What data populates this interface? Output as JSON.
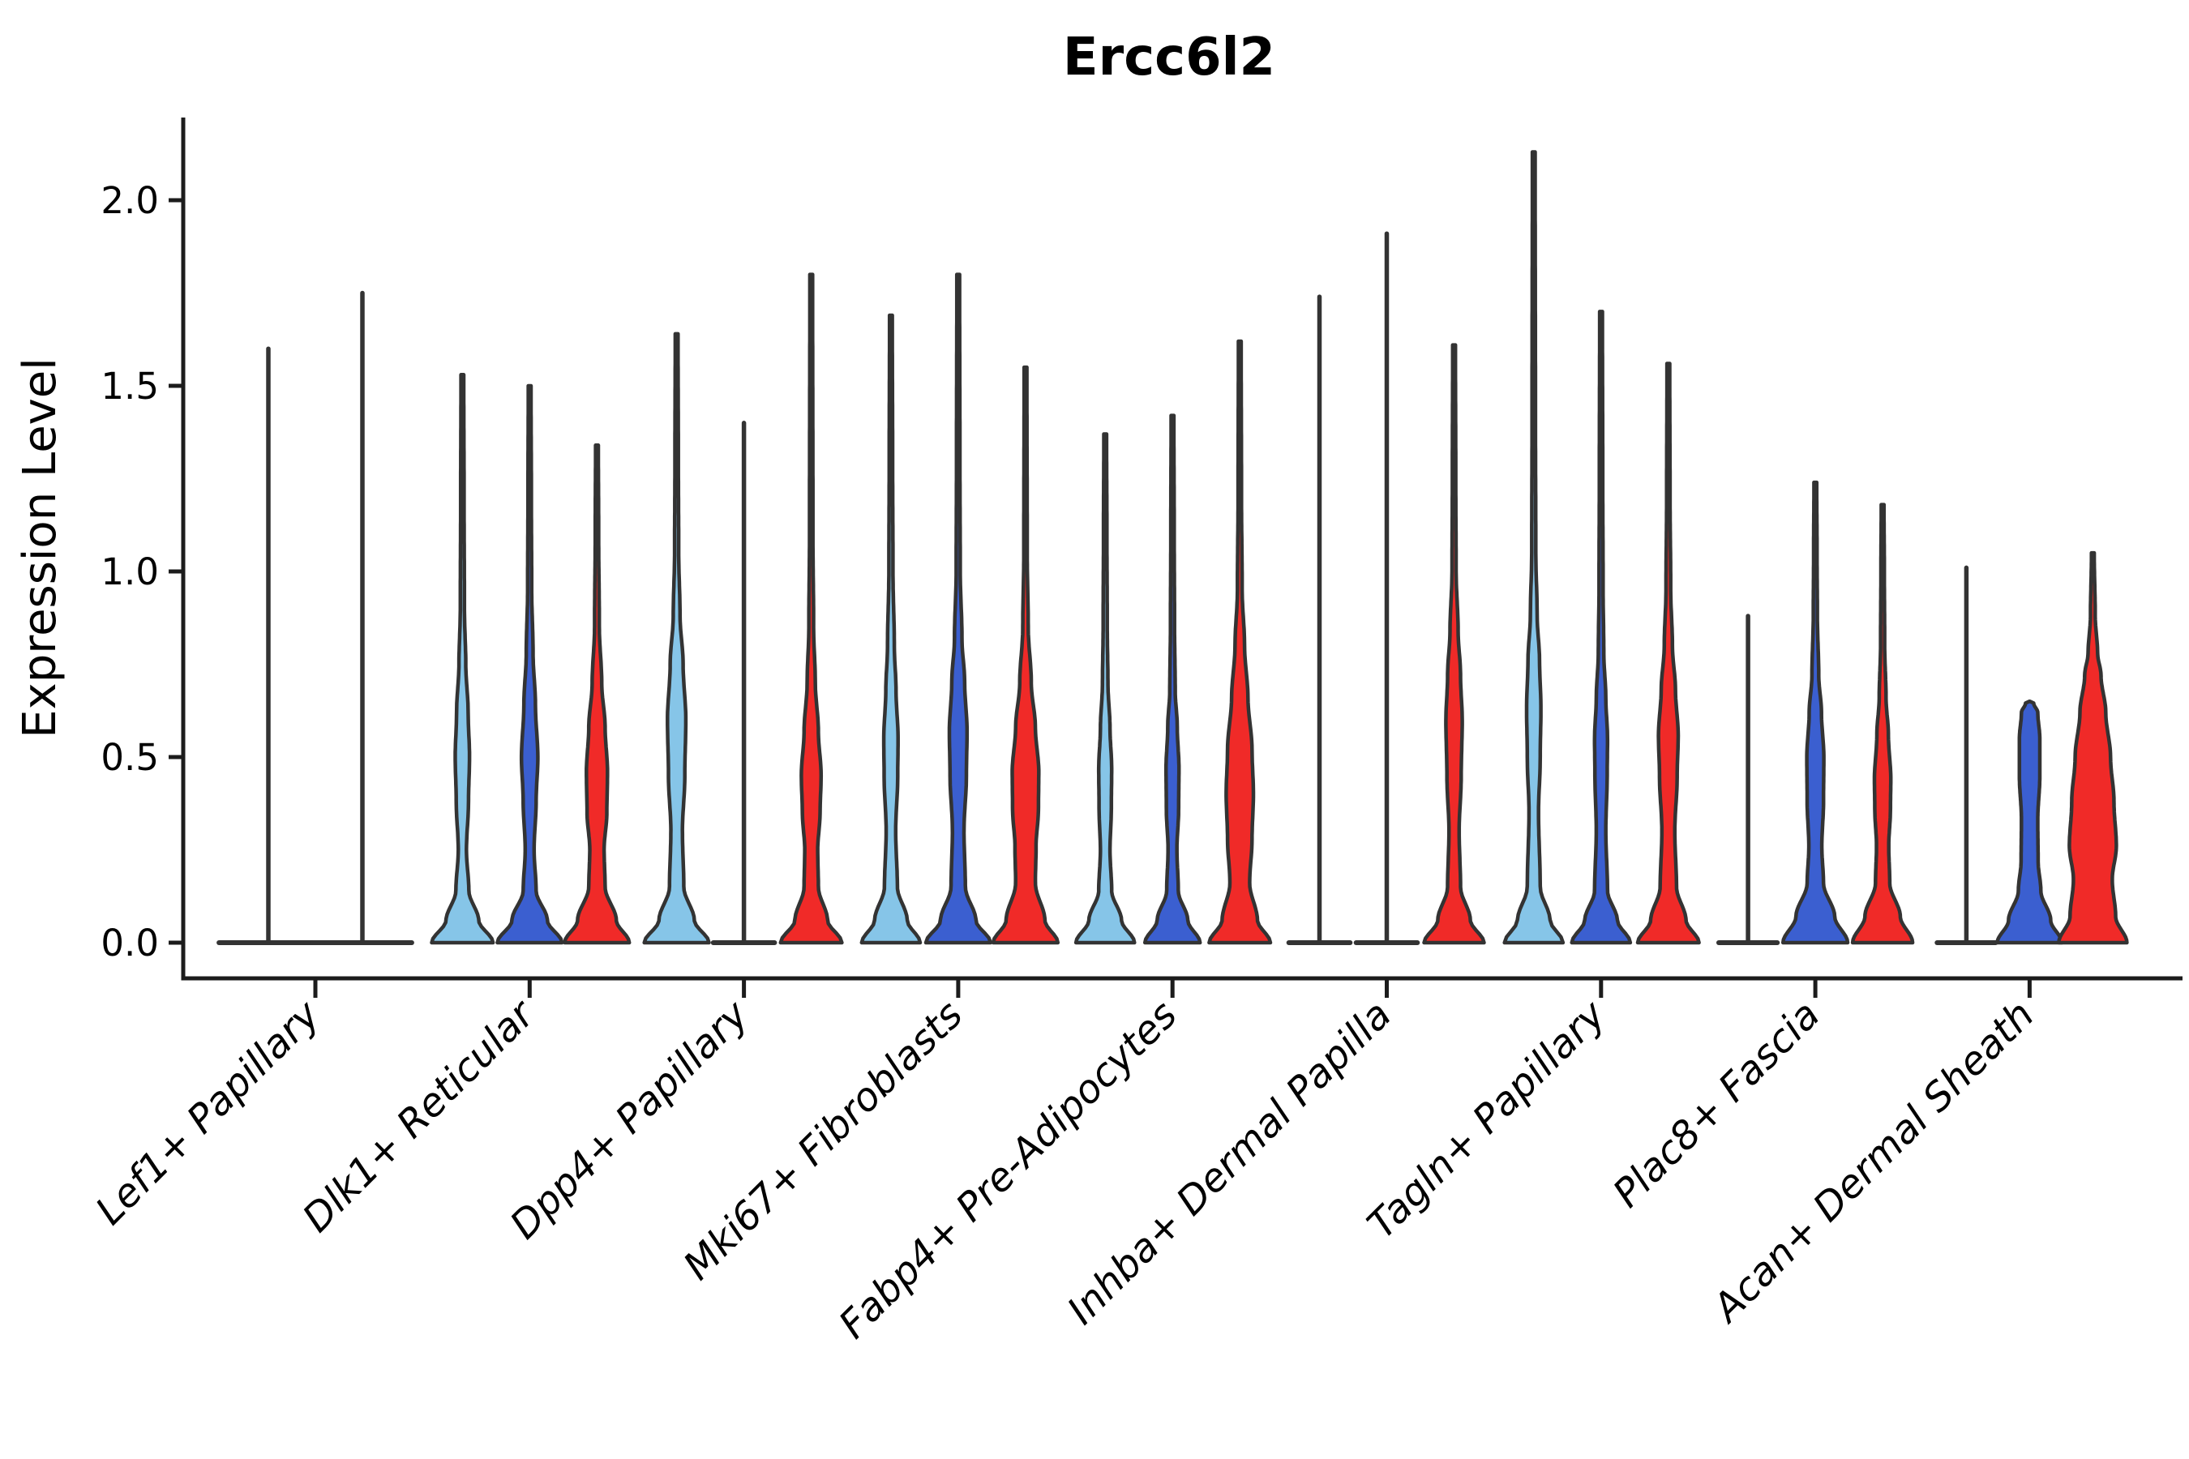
{
  "title": "Ercc6l2",
  "axes": {
    "ylabel": "Expression Level",
    "ytick_labels": [
      "0.0",
      "0.5",
      "1.0",
      "1.5",
      "2.0"
    ]
  },
  "style": {
    "background": "#ffffff",
    "violin_outline": "#333333",
    "axis_color": "#1c1c1c",
    "text_color": "#000000"
  },
  "chart_data": {
    "type": "violin",
    "title": "Ercc6l2",
    "xlabel": "",
    "ylabel": "Expression Level",
    "ylim": [
      -0.1,
      2.22
    ],
    "yticks": [
      0,
      0.5,
      1.0,
      1.5,
      2.0
    ],
    "grid": false,
    "legend_position": "none",
    "series": [
      {
        "name": "light_blue",
        "color": "#86C5E8"
      },
      {
        "name": "royal_blue",
        "color": "#3B5FD0"
      },
      {
        "name": "red",
        "color": "#F02A28"
      }
    ],
    "categories": [
      "Lef1+ Papillary",
      "Dlk1+ Reticular",
      "Dpp4+ Papillary",
      "Mki67+ Fibroblasts",
      "Fabp4+ Pre-Adipocytes",
      "Inhba+ Dermal Papilla",
      "Tagln+ Papillary",
      "Plac8+ Fascia",
      "Acan+ Dermal Sheath"
    ],
    "violins": [
      {
        "category": 0,
        "series": 0,
        "x_offset": -58,
        "max": 1.6,
        "kind": "collapsed",
        "base_halfwidth": 1.45
      },
      {
        "category": 0,
        "series": 1,
        "x_offset": 58,
        "max": 1.75,
        "kind": "collapsed",
        "base_halfwidth": 1.45
      },
      {
        "category": 1,
        "series": 0,
        "x_offset": -83,
        "max": 1.53,
        "kind": "body",
        "profile": [
          [
            0,
            0.9
          ],
          [
            0.06,
            0.48
          ],
          [
            0.14,
            0.19
          ],
          [
            0.25,
            0.12
          ],
          [
            0.38,
            0.18
          ],
          [
            0.5,
            0.21
          ],
          [
            0.62,
            0.17
          ],
          [
            0.75,
            0.1
          ],
          [
            0.9,
            0.06
          ],
          [
            1.2,
            0.05
          ],
          [
            1.53,
            0.04
          ]
        ]
      },
      {
        "category": 1,
        "series": 1,
        "x_offset": 0,
        "max": 1.5,
        "kind": "body",
        "profile": [
          [
            0,
            0.95
          ],
          [
            0.06,
            0.52
          ],
          [
            0.14,
            0.19
          ],
          [
            0.25,
            0.13
          ],
          [
            0.38,
            0.19
          ],
          [
            0.5,
            0.24
          ],
          [
            0.64,
            0.17
          ],
          [
            0.78,
            0.1
          ],
          [
            0.95,
            0.06
          ],
          [
            1.2,
            0.05
          ],
          [
            1.5,
            0.04
          ]
        ]
      },
      {
        "category": 1,
        "series": 2,
        "x_offset": 83,
        "max": 1.34,
        "kind": "body",
        "profile": [
          [
            0,
            0.95
          ],
          [
            0.06,
            0.57
          ],
          [
            0.15,
            0.24
          ],
          [
            0.25,
            0.21
          ],
          [
            0.35,
            0.29
          ],
          [
            0.46,
            0.31
          ],
          [
            0.58,
            0.24
          ],
          [
            0.7,
            0.14
          ],
          [
            0.85,
            0.07
          ],
          [
            1.1,
            0.05
          ],
          [
            1.34,
            0.04
          ]
        ]
      },
      {
        "category": 2,
        "series": 0,
        "x_offset": -83,
        "max": 1.64,
        "kind": "body",
        "profile": [
          [
            0,
            0.95
          ],
          [
            0.06,
            0.52
          ],
          [
            0.15,
            0.21
          ],
          [
            0.3,
            0.17
          ],
          [
            0.45,
            0.24
          ],
          [
            0.6,
            0.27
          ],
          [
            0.75,
            0.19
          ],
          [
            0.88,
            0.1
          ],
          [
            1.05,
            0.06
          ],
          [
            1.3,
            0.05
          ],
          [
            1.64,
            0.04
          ]
        ]
      },
      {
        "category": 2,
        "series": 1,
        "x_offset": 0,
        "max": 1.4,
        "kind": "collapsed",
        "base_halfwidth": 0.9
      },
      {
        "category": 2,
        "series": 2,
        "x_offset": 83,
        "max": 1.8,
        "kind": "body",
        "profile": [
          [
            0,
            0.9
          ],
          [
            0.06,
            0.48
          ],
          [
            0.15,
            0.21
          ],
          [
            0.25,
            0.19
          ],
          [
            0.35,
            0.26
          ],
          [
            0.45,
            0.29
          ],
          [
            0.57,
            0.21
          ],
          [
            0.7,
            0.12
          ],
          [
            0.85,
            0.07
          ],
          [
            1.1,
            0.05
          ],
          [
            1.8,
            0.04
          ]
        ]
      },
      {
        "category": 3,
        "series": 0,
        "x_offset": -83,
        "max": 1.69,
        "kind": "body",
        "profile": [
          [
            0,
            0.86
          ],
          [
            0.06,
            0.48
          ],
          [
            0.15,
            0.19
          ],
          [
            0.3,
            0.14
          ],
          [
            0.45,
            0.2
          ],
          [
            0.55,
            0.21
          ],
          [
            0.68,
            0.15
          ],
          [
            0.8,
            0.1
          ],
          [
            1.0,
            0.06
          ],
          [
            1.3,
            0.05
          ],
          [
            1.69,
            0.04
          ]
        ]
      },
      {
        "category": 3,
        "series": 1,
        "x_offset": 0,
        "max": 1.8,
        "kind": "body",
        "profile": [
          [
            0,
            0.95
          ],
          [
            0.06,
            0.52
          ],
          [
            0.15,
            0.21
          ],
          [
            0.3,
            0.17
          ],
          [
            0.45,
            0.24
          ],
          [
            0.57,
            0.26
          ],
          [
            0.7,
            0.19
          ],
          [
            0.82,
            0.11
          ],
          [
            1.0,
            0.06
          ],
          [
            1.3,
            0.05
          ],
          [
            1.8,
            0.04
          ]
        ]
      },
      {
        "category": 3,
        "series": 2,
        "x_offset": 83,
        "max": 1.55,
        "kind": "body",
        "profile": [
          [
            0,
            0.95
          ],
          [
            0.06,
            0.57
          ],
          [
            0.16,
            0.29
          ],
          [
            0.26,
            0.31
          ],
          [
            0.36,
            0.38
          ],
          [
            0.46,
            0.39
          ],
          [
            0.58,
            0.29
          ],
          [
            0.7,
            0.17
          ],
          [
            0.85,
            0.08
          ],
          [
            1.05,
            0.05
          ],
          [
            1.55,
            0.04
          ]
        ]
      },
      {
        "category": 4,
        "series": 0,
        "x_offset": -83,
        "max": 1.37,
        "kind": "body",
        "profile": [
          [
            0,
            0.86
          ],
          [
            0.06,
            0.48
          ],
          [
            0.14,
            0.19
          ],
          [
            0.25,
            0.14
          ],
          [
            0.36,
            0.18
          ],
          [
            0.47,
            0.19
          ],
          [
            0.58,
            0.14
          ],
          [
            0.7,
            0.08
          ],
          [
            0.85,
            0.06
          ],
          [
            1.1,
            0.05
          ],
          [
            1.37,
            0.04
          ]
        ]
      },
      {
        "category": 4,
        "series": 1,
        "x_offset": 0,
        "max": 1.42,
        "kind": "body",
        "profile": [
          [
            0,
            0.81
          ],
          [
            0.06,
            0.45
          ],
          [
            0.14,
            0.17
          ],
          [
            0.25,
            0.13
          ],
          [
            0.36,
            0.18
          ],
          [
            0.47,
            0.19
          ],
          [
            0.58,
            0.14
          ],
          [
            0.68,
            0.08
          ],
          [
            0.85,
            0.06
          ],
          [
            1.1,
            0.05
          ],
          [
            1.42,
            0.04
          ]
        ]
      },
      {
        "category": 4,
        "series": 2,
        "x_offset": 83,
        "max": 1.62,
        "kind": "body",
        "profile": [
          [
            0,
            0.9
          ],
          [
            0.06,
            0.52
          ],
          [
            0.16,
            0.29
          ],
          [
            0.28,
            0.36
          ],
          [
            0.4,
            0.4
          ],
          [
            0.52,
            0.36
          ],
          [
            0.66,
            0.24
          ],
          [
            0.8,
            0.14
          ],
          [
            0.95,
            0.07
          ],
          [
            1.2,
            0.05
          ],
          [
            1.62,
            0.04
          ]
        ]
      },
      {
        "category": 5,
        "series": 0,
        "x_offset": -83,
        "max": 1.74,
        "kind": "collapsed",
        "base_halfwidth": 0.9
      },
      {
        "category": 5,
        "series": 1,
        "x_offset": 0,
        "max": 1.91,
        "kind": "collapsed",
        "base_halfwidth": 0.9
      },
      {
        "category": 5,
        "series": 2,
        "x_offset": 83,
        "max": 1.61,
        "kind": "body",
        "profile": [
          [
            0,
            0.88
          ],
          [
            0.06,
            0.48
          ],
          [
            0.15,
            0.19
          ],
          [
            0.3,
            0.15
          ],
          [
            0.45,
            0.21
          ],
          [
            0.6,
            0.24
          ],
          [
            0.72,
            0.19
          ],
          [
            0.84,
            0.12
          ],
          [
            1.0,
            0.06
          ],
          [
            1.25,
            0.05
          ],
          [
            1.61,
            0.04
          ]
        ]
      },
      {
        "category": 6,
        "series": 0,
        "x_offset": -83,
        "max": 2.13,
        "kind": "body",
        "profile": [
          [
            0,
            0.86
          ],
          [
            0.06,
            0.48
          ],
          [
            0.15,
            0.19
          ],
          [
            0.35,
            0.14
          ],
          [
            0.5,
            0.19
          ],
          [
            0.63,
            0.21
          ],
          [
            0.76,
            0.17
          ],
          [
            0.88,
            0.1
          ],
          [
            1.05,
            0.06
          ],
          [
            1.4,
            0.05
          ],
          [
            2.13,
            0.04
          ]
        ]
      },
      {
        "category": 6,
        "series": 1,
        "x_offset": 0,
        "max": 1.7,
        "kind": "body",
        "profile": [
          [
            0,
            0.86
          ],
          [
            0.06,
            0.48
          ],
          [
            0.14,
            0.19
          ],
          [
            0.3,
            0.14
          ],
          [
            0.45,
            0.18
          ],
          [
            0.55,
            0.19
          ],
          [
            0.66,
            0.14
          ],
          [
            0.78,
            0.08
          ],
          [
            0.95,
            0.06
          ],
          [
            1.25,
            0.05
          ],
          [
            1.7,
            0.04
          ]
        ]
      },
      {
        "category": 6,
        "series": 2,
        "x_offset": 83,
        "max": 1.56,
        "kind": "body",
        "profile": [
          [
            0,
            0.9
          ],
          [
            0.06,
            0.52
          ],
          [
            0.15,
            0.24
          ],
          [
            0.3,
            0.19
          ],
          [
            0.45,
            0.26
          ],
          [
            0.56,
            0.29
          ],
          [
            0.68,
            0.21
          ],
          [
            0.8,
            0.12
          ],
          [
            0.95,
            0.07
          ],
          [
            1.2,
            0.05
          ],
          [
            1.56,
            0.04
          ]
        ]
      },
      {
        "category": 7,
        "series": 0,
        "x_offset": -83,
        "max": 0.88,
        "kind": "collapsed",
        "base_halfwidth": 0.86
      },
      {
        "category": 7,
        "series": 1,
        "x_offset": 0,
        "max": 1.24,
        "kind": "body",
        "profile": [
          [
            0,
            0.95
          ],
          [
            0.07,
            0.57
          ],
          [
            0.16,
            0.24
          ],
          [
            0.26,
            0.19
          ],
          [
            0.38,
            0.24
          ],
          [
            0.5,
            0.25
          ],
          [
            0.62,
            0.18
          ],
          [
            0.72,
            0.1
          ],
          [
            0.88,
            0.06
          ],
          [
            1.05,
            0.05
          ],
          [
            1.24,
            0.04
          ]
        ]
      },
      {
        "category": 7,
        "series": 2,
        "x_offset": 83,
        "max": 1.18,
        "kind": "body",
        "profile": [
          [
            0,
            0.88
          ],
          [
            0.07,
            0.52
          ],
          [
            0.16,
            0.21
          ],
          [
            0.26,
            0.18
          ],
          [
            0.36,
            0.23
          ],
          [
            0.44,
            0.24
          ],
          [
            0.56,
            0.17
          ],
          [
            0.66,
            0.1
          ],
          [
            0.8,
            0.06
          ],
          [
            1.0,
            0.05
          ],
          [
            1.18,
            0.04
          ]
        ]
      },
      {
        "category": 8,
        "series": 0,
        "x_offset": -78,
        "max": 1.01,
        "kind": "collapsed",
        "base_halfwidth": 0.86
      },
      {
        "category": 8,
        "series": 1,
        "x_offset": 0,
        "max": 0.65,
        "kind": "body",
        "profile": [
          [
            0,
            0.95
          ],
          [
            0.06,
            0.62
          ],
          [
            0.14,
            0.33
          ],
          [
            0.22,
            0.25
          ],
          [
            0.33,
            0.24
          ],
          [
            0.45,
            0.3
          ],
          [
            0.55,
            0.3
          ],
          [
            0.62,
            0.24
          ],
          [
            0.645,
            0.12
          ],
          [
            0.65,
            0.01
          ]
        ]
      },
      {
        "category": 8,
        "series": 2,
        "x_offset": 78,
        "max": 1.05,
        "kind": "body",
        "profile": [
          [
            0,
            1.0
          ],
          [
            0.07,
            0.67
          ],
          [
            0.17,
            0.57
          ],
          [
            0.26,
            0.69
          ],
          [
            0.38,
            0.62
          ],
          [
            0.5,
            0.52
          ],
          [
            0.62,
            0.38
          ],
          [
            0.72,
            0.24
          ],
          [
            0.78,
            0.14
          ],
          [
            0.88,
            0.07
          ],
          [
            1.05,
            0.04
          ]
        ]
      }
    ]
  }
}
